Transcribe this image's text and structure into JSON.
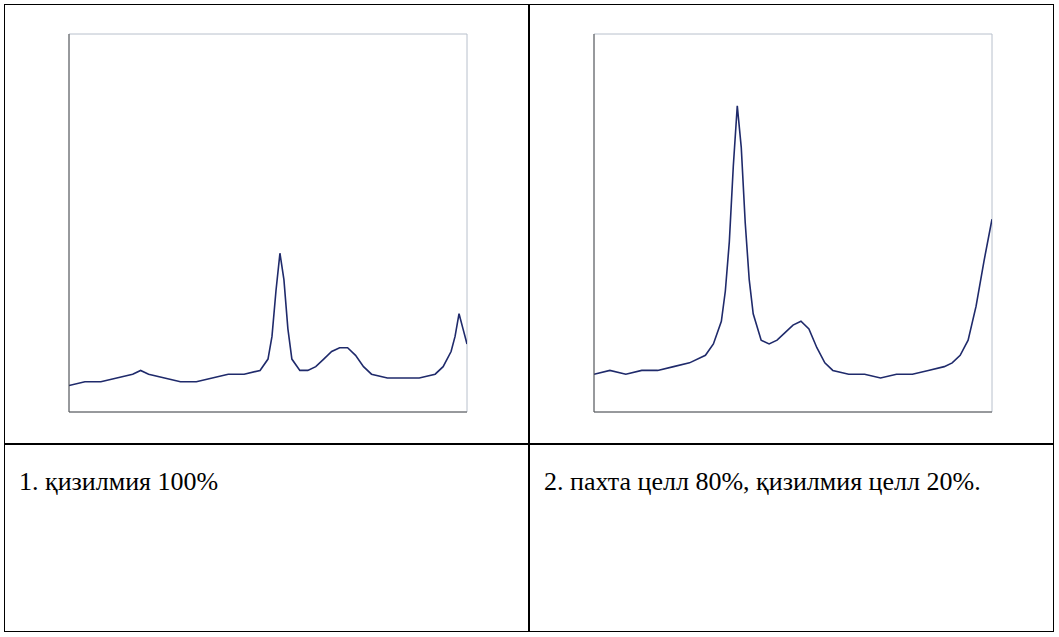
{
  "chart_data": [
    {
      "type": "line",
      "title": "1. қизилмия 100%",
      "color": "#1f2a6b",
      "grid": true,
      "tick_labels": false,
      "xlim": [
        0,
        100
      ],
      "xticks": [
        0,
        10,
        20,
        30,
        40,
        50,
        60,
        70,
        80,
        90,
        100
      ],
      "ylim": [
        0,
        100
      ],
      "yticks": [
        0,
        10,
        20,
        30,
        40,
        50,
        60,
        70,
        80,
        90,
        100
      ],
      "x": [
        0,
        4,
        8,
        12,
        16,
        18,
        20,
        24,
        28,
        32,
        36,
        40,
        44,
        48,
        50,
        51,
        52,
        53,
        54,
        55,
        56,
        58,
        60,
        62,
        64,
        66,
        68,
        70,
        72,
        74,
        76,
        80,
        84,
        88,
        92,
        94,
        96,
        97,
        98,
        99,
        100
      ],
      "values": [
        7,
        8,
        8,
        9,
        10,
        11,
        10,
        9,
        8,
        8,
        9,
        10,
        10,
        11,
        14,
        20,
        32,
        42,
        35,
        22,
        14,
        11,
        11,
        12,
        14,
        16,
        17,
        17,
        15,
        12,
        10,
        9,
        9,
        9,
        10,
        12,
        16,
        20,
        26,
        22,
        18
      ]
    },
    {
      "type": "line",
      "title": "2. пахта целл 80%, қизилмия целл 20%.",
      "color": "#1f2a6b",
      "grid": true,
      "tick_labels": false,
      "xlim": [
        0,
        100
      ],
      "xticks": [
        0,
        10,
        20,
        30,
        40,
        50,
        60,
        70,
        80,
        90,
        100
      ],
      "ylim": [
        0,
        100
      ],
      "yticks": [
        0,
        10,
        20,
        30,
        40,
        50,
        60,
        70,
        80,
        90,
        100
      ],
      "x": [
        0,
        4,
        8,
        12,
        16,
        20,
        24,
        28,
        30,
        32,
        33,
        34,
        35,
        36,
        37,
        38,
        39,
        40,
        42,
        44,
        46,
        48,
        50,
        52,
        54,
        56,
        58,
        60,
        64,
        68,
        72,
        76,
        80,
        84,
        88,
        90,
        92,
        94,
        96,
        98,
        100
      ],
      "values": [
        10,
        11,
        10,
        11,
        11,
        12,
        13,
        15,
        18,
        24,
        32,
        45,
        65,
        81,
        70,
        50,
        35,
        26,
        19,
        18,
        19,
        21,
        23,
        24,
        22,
        17,
        13,
        11,
        10,
        10,
        9,
        10,
        10,
        11,
        12,
        13,
        15,
        19,
        28,
        40,
        51
      ]
    }
  ]
}
